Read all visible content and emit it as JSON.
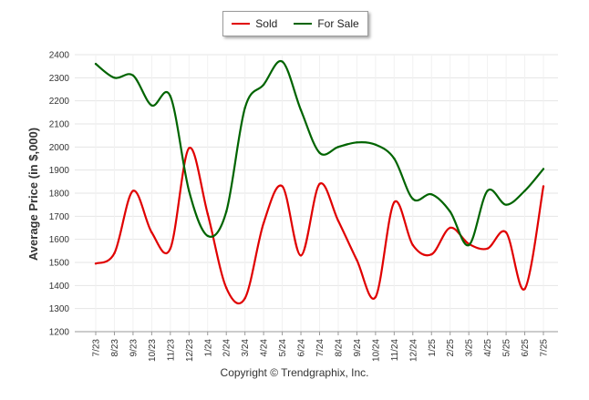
{
  "chart_data": {
    "type": "line",
    "title": "",
    "xlabel": "",
    "ylabel": "Average Price (in $,000)",
    "ylim": [
      1200,
      2400
    ],
    "yticks": [
      1200,
      1300,
      1400,
      1500,
      1600,
      1700,
      1800,
      1900,
      2000,
      2100,
      2200,
      2300,
      2400
    ],
    "grid": true,
    "legend_position": "top-center",
    "categories": [
      "7/23",
      "8/23",
      "9/23",
      "10/23",
      "11/23",
      "12/23",
      "1/24",
      "2/24",
      "3/24",
      "4/24",
      "5/24",
      "6/24",
      "7/24",
      "8/24",
      "9/24",
      "10/24",
      "11/24",
      "12/24",
      "1/25",
      "2/25",
      "3/25",
      "4/25",
      "5/25",
      "6/25",
      "7/25"
    ],
    "series": [
      {
        "name": "Sold",
        "color": "#e00000",
        "values": [
          1495,
          1540,
          1810,
          1630,
          1560,
          1995,
          1710,
          1390,
          1345,
          1670,
          1830,
          1530,
          1840,
          1680,
          1510,
          1350,
          1760,
          1575,
          1535,
          1650,
          1580,
          1560,
          1630,
          1385,
          1830
        ]
      },
      {
        "name": "For Sale",
        "color": "#006400",
        "values": [
          2360,
          2300,
          2310,
          2180,
          2220,
          1810,
          1615,
          1720,
          2170,
          2270,
          2370,
          2160,
          1975,
          2000,
          2020,
          2010,
          1950,
          1775,
          1795,
          1720,
          1575,
          1810,
          1750,
          1810,
          1905
        ]
      }
    ]
  },
  "footer": {
    "copyright": "Copyright © Trendgraphix, Inc."
  }
}
